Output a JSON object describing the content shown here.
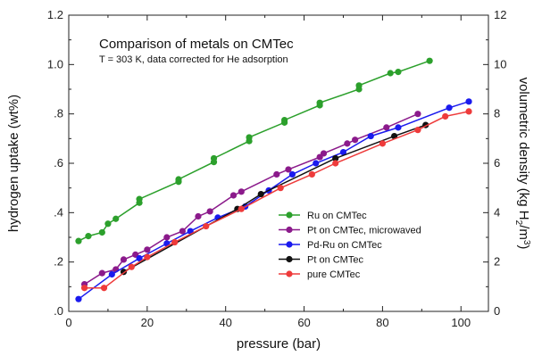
{
  "chart_data": {
    "type": "line",
    "title": "Comparison of metals on CMTec",
    "subtitle": "T = 303 K, data corrected for He adsorption",
    "xlabel": "pressure (bar)",
    "ylabel": "hydrogen uptake (wt%)",
    "y2label_parts": [
      "volumetric density (kg H",
      "2",
      "/m",
      "3",
      ")"
    ],
    "xlim": [
      0,
      107
    ],
    "ylim": [
      0,
      1.2
    ],
    "y2lim": [
      0,
      12
    ],
    "x_ticks": [
      "0",
      "20",
      "40",
      "60",
      "80",
      "100"
    ],
    "x_tick_values": [
      0,
      20,
      40,
      60,
      80,
      100
    ],
    "y_ticks": [
      ".0",
      ".2",
      ".4",
      ".6",
      ".8",
      "1.0",
      "1.2"
    ],
    "y_tick_values": [
      0,
      0.2,
      0.4,
      0.6,
      0.8,
      1.0,
      1.2
    ],
    "y2_ticks": [
      "0",
      "2",
      "4",
      "6",
      "8",
      "10",
      "12"
    ],
    "y2_tick_values": [
      0,
      0.2,
      0.4,
      0.6,
      0.8,
      1.0,
      1.2
    ],
    "grid": false,
    "legend_position": "bottom-right",
    "series": [
      {
        "name": "Ru on CMTec",
        "color": "#2ca02c",
        "points": [
          [
            2.5,
            0.285
          ],
          [
            5,
            0.305
          ],
          [
            8.5,
            0.32
          ],
          [
            10,
            0.355
          ],
          [
            12,
            0.375
          ],
          [
            18,
            0.44
          ],
          [
            18,
            0.455
          ],
          [
            28,
            0.525
          ],
          [
            28,
            0.535
          ],
          [
            37,
            0.605
          ],
          [
            37,
            0.62
          ],
          [
            46,
            0.69
          ],
          [
            46,
            0.705
          ],
          [
            55,
            0.765
          ],
          [
            55,
            0.775
          ],
          [
            64,
            0.835
          ],
          [
            64,
            0.845
          ],
          [
            74,
            0.9
          ],
          [
            74,
            0.915
          ],
          [
            82,
            0.965
          ],
          [
            84,
            0.97
          ],
          [
            92,
            1.015
          ]
        ]
      },
      {
        "name": "Pt on CMTec, microwaved",
        "color": "#8b1a8b",
        "points": [
          [
            4,
            0.11
          ],
          [
            8.5,
            0.155
          ],
          [
            12,
            0.17
          ],
          [
            14,
            0.21
          ],
          [
            17,
            0.23
          ],
          [
            20,
            0.25
          ],
          [
            25,
            0.3
          ],
          [
            29,
            0.325
          ],
          [
            33,
            0.385
          ],
          [
            36,
            0.405
          ],
          [
            42,
            0.47
          ],
          [
            44,
            0.485
          ],
          [
            53,
            0.555
          ],
          [
            56,
            0.575
          ],
          [
            64,
            0.625
          ],
          [
            65,
            0.64
          ],
          [
            71,
            0.68
          ],
          [
            73,
            0.695
          ],
          [
            81,
            0.745
          ],
          [
            89,
            0.8
          ]
        ]
      },
      {
        "name": "Pd-Ru on CMTec",
        "color": "#1a1aee",
        "points": [
          [
            2.5,
            0.05
          ],
          [
            11,
            0.15
          ],
          [
            18,
            0.215
          ],
          [
            25,
            0.275
          ],
          [
            31,
            0.325
          ],
          [
            38,
            0.38
          ],
          [
            45,
            0.425
          ],
          [
            51,
            0.49
          ],
          [
            57,
            0.555
          ],
          [
            63,
            0.6
          ],
          [
            70,
            0.645
          ],
          [
            77,
            0.71
          ],
          [
            84,
            0.745
          ],
          [
            97,
            0.825
          ],
          [
            102,
            0.85
          ]
        ]
      },
      {
        "name": "Pt on CMTec",
        "color": "#111111",
        "points": [
          [
            14,
            0.16
          ],
          [
            43,
            0.415
          ],
          [
            49,
            0.475
          ],
          [
            68,
            0.62
          ],
          [
            83,
            0.71
          ],
          [
            91,
            0.755
          ]
        ]
      },
      {
        "name": "pure CMTec",
        "color": "#ee3b3b",
        "points": [
          [
            4,
            0.095
          ],
          [
            9,
            0.095
          ],
          [
            16,
            0.18
          ],
          [
            20,
            0.22
          ],
          [
            27,
            0.28
          ],
          [
            35,
            0.345
          ],
          [
            44,
            0.415
          ],
          [
            54,
            0.5
          ],
          [
            62,
            0.555
          ],
          [
            68,
            0.6
          ],
          [
            80,
            0.68
          ],
          [
            89,
            0.735
          ],
          [
            96,
            0.79
          ],
          [
            102,
            0.81
          ]
        ]
      }
    ]
  }
}
